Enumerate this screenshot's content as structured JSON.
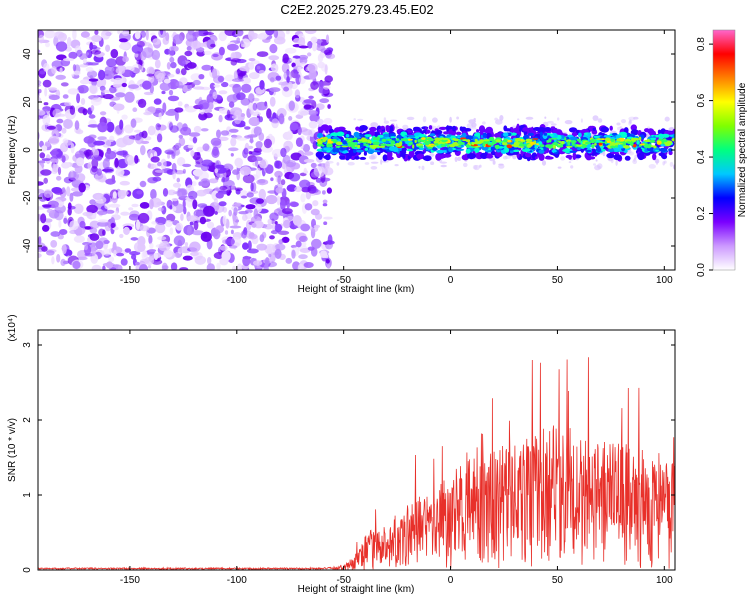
{
  "title": "C2E2.2025.279.23.45.E02",
  "chart_data": [
    {
      "type": "heatmap",
      "xlabel": "Height of straight line (km)",
      "ylabel": "Frequency (Hz)",
      "xlim": [
        -193,
        105
      ],
      "ylim": [
        -50,
        50
      ],
      "xticks": [
        -150,
        -100,
        -50,
        0,
        50,
        100
      ],
      "xtick_labels": [
        "-150",
        "-100",
        "-50",
        "0",
        "50",
        "100"
      ],
      "yticks": [
        -40,
        -20,
        0,
        20,
        40
      ],
      "ytick_labels": [
        "-40",
        "-20",
        "0",
        "20",
        "40"
      ],
      "noise_region_x": [
        -193,
        -58
      ],
      "signal_band": {
        "x_range": [
          -62,
          105
        ],
        "center_hz": 3,
        "half_width_hz": 5
      },
      "colorbar": {
        "label": "Normalized spectral amplitude",
        "range": [
          0.0,
          0.85
        ],
        "ticks": [
          0.0,
          0.2,
          0.4,
          0.6,
          0.8
        ],
        "tick_labels": [
          "0.0",
          "0.2",
          "0.4",
          "0.6",
          "0.8"
        ],
        "colors": [
          "#ffffff",
          "#cc99ff",
          "#7a00ff",
          "#0000ff",
          "#00c8ff",
          "#00ff80",
          "#80ff00",
          "#ffff00",
          "#ff8000",
          "#ff0000",
          "#ff66cc"
        ]
      }
    },
    {
      "type": "line",
      "xlabel": "Height of straight line (km)",
      "ylabel": "SNR (10 * v/v)",
      "multiplier": "(x10⁴)",
      "xlim": [
        -193,
        105
      ],
      "ylim": [
        0,
        3.2
      ],
      "xticks": [
        -150,
        -100,
        -50,
        0,
        50,
        100
      ],
      "xtick_labels": [
        "-150",
        "-100",
        "-50",
        "0",
        "50",
        "100"
      ],
      "yticks": [
        0,
        1,
        2,
        3
      ],
      "ytick_labels": [
        "0",
        "1",
        "2",
        "3"
      ],
      "series": [
        {
          "name": "SNR",
          "color": "#e8302a",
          "envelope_x": [
            -193,
            -60,
            -50,
            -45,
            -40,
            -35,
            -30,
            -25,
            -20,
            -10,
            0,
            10,
            20,
            30,
            40,
            50,
            60,
            70,
            80,
            90,
            100,
            105
          ],
          "envelope_y": [
            0.03,
            0.03,
            0.05,
            0.2,
            0.45,
            0.6,
            0.6,
            0.55,
            0.9,
            1.1,
            1.3,
            1.5,
            1.6,
            1.75,
            1.8,
            2.0,
            1.85,
            1.75,
            1.7,
            1.6,
            1.5,
            1.4
          ]
        }
      ]
    }
  ]
}
